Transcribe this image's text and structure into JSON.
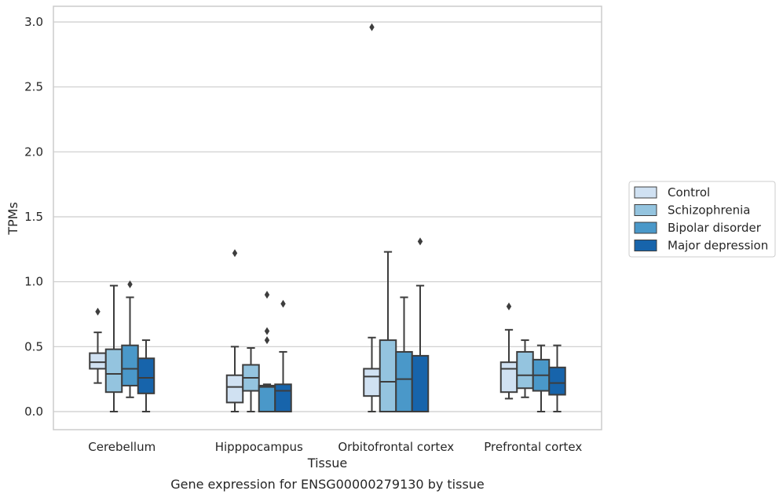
{
  "caption": "Gene expression for ENSG00000279130 by tissue",
  "chart_data": {
    "type": "boxplot",
    "xlabel": "Tissue",
    "ylabel": "TPMs",
    "ylim": [
      -0.15,
      3.12
    ],
    "yticks": [
      0.0,
      0.5,
      1.0,
      1.5,
      2.0,
      2.5,
      3.0
    ],
    "ytick_labels": [
      "0.0",
      "0.5",
      "1.0",
      "1.5",
      "2.0",
      "2.5",
      "3.0"
    ],
    "grid": "horizontal",
    "legend_position": "right",
    "categories": [
      "Cerebellum",
      "Hipppocampus",
      "Orbitofrontal cortex",
      "Prefrontal cortex"
    ],
    "series": [
      {
        "name": "Control",
        "color": "#d0e1f2",
        "boxes": [
          {
            "whislo": 0.22,
            "q1": 0.33,
            "med": 0.38,
            "q3": 0.45,
            "whishi": 0.61,
            "fliers": [
              0.77
            ]
          },
          {
            "whislo": 0.0,
            "q1": 0.07,
            "med": 0.19,
            "q3": 0.28,
            "whishi": 0.5,
            "fliers": [
              1.22
            ]
          },
          {
            "whislo": 0.0,
            "q1": 0.12,
            "med": 0.27,
            "q3": 0.33,
            "whishi": 0.57,
            "fliers": [
              2.96
            ]
          },
          {
            "whislo": 0.1,
            "q1": 0.15,
            "med": 0.33,
            "q3": 0.38,
            "whishi": 0.63,
            "fliers": [
              0.81
            ]
          }
        ]
      },
      {
        "name": "Schizophrenia",
        "color": "#94c4df",
        "boxes": [
          {
            "whislo": 0.0,
            "q1": 0.15,
            "med": 0.29,
            "q3": 0.48,
            "whishi": 0.97,
            "fliers": []
          },
          {
            "whislo": 0.0,
            "q1": 0.16,
            "med": 0.26,
            "q3": 0.36,
            "whishi": 0.49,
            "fliers": []
          },
          {
            "whislo": 0.0,
            "q1": 0.0,
            "med": 0.23,
            "q3": 0.55,
            "whishi": 1.23,
            "fliers": []
          },
          {
            "whislo": 0.11,
            "q1": 0.18,
            "med": 0.28,
            "q3": 0.46,
            "whishi": 0.55,
            "fliers": []
          }
        ]
      },
      {
        "name": "Bipolar disorder",
        "color": "#4a98c9",
        "boxes": [
          {
            "whislo": 0.11,
            "q1": 0.2,
            "med": 0.33,
            "q3": 0.51,
            "whishi": 0.88,
            "fliers": [
              0.98
            ]
          },
          {
            "whislo": 0.0,
            "q1": 0.0,
            "med": 0.19,
            "q3": 0.2,
            "whishi": 0.21,
            "fliers": [
              0.55,
              0.62,
              0.9
            ]
          },
          {
            "whislo": 0.0,
            "q1": 0.0,
            "med": 0.25,
            "q3": 0.46,
            "whishi": 0.88,
            "fliers": []
          },
          {
            "whislo": 0.0,
            "q1": 0.16,
            "med": 0.28,
            "q3": 0.4,
            "whishi": 0.51,
            "fliers": []
          }
        ]
      },
      {
        "name": "Major depression",
        "color": "#1764ab",
        "boxes": [
          {
            "whislo": 0.0,
            "q1": 0.14,
            "med": 0.26,
            "q3": 0.41,
            "whishi": 0.55,
            "fliers": []
          },
          {
            "whislo": 0.0,
            "q1": 0.0,
            "med": 0.16,
            "q3": 0.21,
            "whishi": 0.46,
            "fliers": [
              0.83
            ]
          },
          {
            "whislo": 0.0,
            "q1": 0.0,
            "med": 0.0,
            "q3": 0.43,
            "whishi": 0.97,
            "fliers": [
              1.31
            ]
          },
          {
            "whislo": 0.0,
            "q1": 0.13,
            "med": 0.22,
            "q3": 0.34,
            "whishi": 0.51,
            "fliers": []
          }
        ]
      }
    ]
  }
}
